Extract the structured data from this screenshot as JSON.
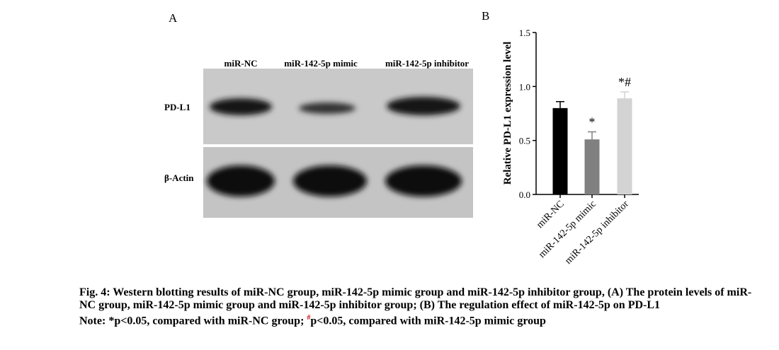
{
  "panel_a": {
    "label": "A",
    "lanes": [
      "miR-NC",
      "miR-142-5p mimic",
      "miR-142-5p inhibitor"
    ],
    "rows": [
      "PD-L1",
      "β-Actin"
    ]
  },
  "chart_data": {
    "type": "bar",
    "panel_label": "B",
    "ylabel": "Relative PD-L1 expression level",
    "categories": [
      "miR-NC",
      "miR-142-5p mimic",
      "miR-142-5p inhibitor"
    ],
    "values": [
      0.8,
      0.51,
      0.89
    ],
    "errors": [
      0.06,
      0.07,
      0.06
    ],
    "colors": [
      "#000000",
      "#808080",
      "#d3d3d3"
    ],
    "annotations": [
      {
        "text": "*",
        "category": "miR-142-5p mimic"
      },
      {
        "text": "*#",
        "category": "miR-142-5p inhibitor"
      }
    ],
    "ylim": [
      0,
      1.5
    ],
    "yticks": [
      {
        "value": 0,
        "label": "0.0"
      },
      {
        "value": 0.5,
        "label": "0.5"
      },
      {
        "value": 1,
        "label": "1.0"
      },
      {
        "value": 1.5,
        "label": "1.5"
      }
    ]
  },
  "caption": {
    "title": "Fig. 4: Western blotting results of miR-NC group, miR-142-5p mimic group and miR-142-5p inhibitor group, (A) The protein levels of miR-NC group, miR-142-5p mimic group and miR-142-5p inhibitor group; (B) The regulation effect of miR-142-5p on PD-L1",
    "note": [
      "Note: *p<0.05, compared with miR-NC group; ",
      "#",
      "p<0.05, compared with miR-142-5p mimic group"
    ]
  }
}
